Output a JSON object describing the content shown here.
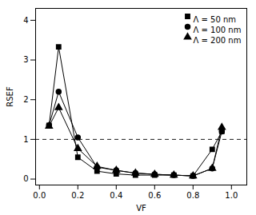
{
  "chart_data": {
    "type": "line",
    "xlabel": "VF",
    "ylabel": "RSEF",
    "x": [
      0.05,
      0.1,
      0.2,
      0.3,
      0.4,
      0.5,
      0.6,
      0.7,
      0.8,
      0.9,
      0.95
    ],
    "series": [
      {
        "name": "Λ = 50 nm",
        "marker": "square",
        "color": "black",
        "values": [
          1.35,
          3.33,
          0.55,
          0.2,
          0.13,
          0.1,
          0.1,
          0.1,
          0.08,
          0.75,
          1.2
        ]
      },
      {
        "name": "Λ = 100 nm",
        "marker": "circle",
        "color": "black",
        "values": [
          1.35,
          2.2,
          1.05,
          0.3,
          0.22,
          0.15,
          0.12,
          0.1,
          0.08,
          0.27,
          1.2
        ]
      },
      {
        "name": "Λ = 200 nm",
        "marker": "triangle",
        "color": "black",
        "values": [
          1.33,
          1.8,
          0.77,
          0.32,
          0.22,
          0.15,
          0.12,
          0.1,
          0.08,
          0.27,
          1.3
        ]
      }
    ],
    "reference_lines": [
      {
        "y": 1.0,
        "line_style": "dashed",
        "color": "black"
      }
    ],
    "xlim": [
      -0.02,
      1.08
    ],
    "ylim": [
      -0.15,
      4.3
    ],
    "xticks": [
      {
        "value": 0.0,
        "label": "0.0"
      },
      0.2,
      0.4,
      0.6,
      0.8,
      {
        "value": 1.0,
        "label": "1.0"
      }
    ],
    "yticks": [
      0,
      1,
      2,
      3,
      4
    ],
    "legend": "upper right",
    "grid": false
  }
}
